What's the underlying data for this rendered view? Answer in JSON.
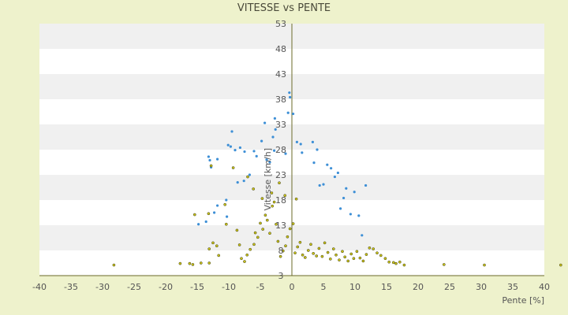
{
  "chart_data": {
    "type": "scatter",
    "title": "VITESSE vs PENTE",
    "xlabel": "Pente [%]",
    "ylabel": "Vitesse [km/h]",
    "xlim": [
      -40,
      40
    ],
    "ylim": [
      3,
      53
    ],
    "x_ticks": [
      "-40",
      "-35",
      "-30",
      "-25",
      "-20",
      "-15",
      "-10",
      "-5",
      "0",
      "5",
      "10",
      "15",
      "20",
      "25",
      "30",
      "35",
      "40"
    ],
    "y_ticks": [
      "3",
      "8",
      "13",
      "18",
      "23",
      "28",
      "33",
      "38",
      "43",
      "48",
      "53"
    ],
    "grid": "horizontal alternating bands",
    "colors": {
      "series_1": "#3d8fd6",
      "series_2": "#c9c21a",
      "series_2_edge": "#3b3b16",
      "axis": "#6b6b2a",
      "band": "#f0f0f0"
    },
    "series": [
      {
        "color": "#3d8fd6",
        "points": [
          [
            -0.4,
            39.3
          ],
          [
            -0.3,
            38.4
          ],
          [
            0.2,
            35.1
          ],
          [
            -0.6,
            35.3
          ],
          [
            -2.7,
            34.2
          ],
          [
            -4.3,
            33.3
          ],
          [
            -9.5,
            31.6
          ],
          [
            -2.6,
            32.0
          ],
          [
            -4.8,
            29.7
          ],
          [
            -3.0,
            30.5
          ],
          [
            1.4,
            29.1
          ],
          [
            0.8,
            29.5
          ],
          [
            -10.1,
            28.9
          ],
          [
            -9.7,
            28.6
          ],
          [
            -6.0,
            27.7
          ],
          [
            -7.5,
            27.6
          ],
          [
            -8.2,
            28.4
          ],
          [
            -2.8,
            27.8
          ],
          [
            1.6,
            27.4
          ],
          [
            3.3,
            29.5
          ],
          [
            4.0,
            28.0
          ],
          [
            -13.2,
            26.6
          ],
          [
            -13.0,
            25.9
          ],
          [
            -11.8,
            26.1
          ],
          [
            -9.0,
            27.9
          ],
          [
            -5.6,
            26.7
          ],
          [
            -4.0,
            26.0
          ],
          [
            -1.0,
            27.2
          ],
          [
            5.6,
            25.0
          ],
          [
            6.2,
            24.3
          ],
          [
            -12.8,
            24.5
          ],
          [
            -3.5,
            25.5
          ],
          [
            3.5,
            25.4
          ],
          [
            7.3,
            23.4
          ],
          [
            -6.7,
            23.0
          ],
          [
            6.8,
            22.6
          ],
          [
            -7.6,
            21.8
          ],
          [
            -8.6,
            21.5
          ],
          [
            4.4,
            20.9
          ],
          [
            5.0,
            21.1
          ],
          [
            8.6,
            20.3
          ],
          [
            11.7,
            20.9
          ],
          [
            9.9,
            19.6
          ],
          [
            8.2,
            18.4
          ],
          [
            -10.4,
            18.0
          ],
          [
            -11.8,
            16.9
          ],
          [
            7.7,
            16.3
          ],
          [
            -12.3,
            15.5
          ],
          [
            -13.6,
            13.7
          ],
          [
            -14.8,
            13.2
          ],
          [
            -10.3,
            14.7
          ],
          [
            9.3,
            15.2
          ],
          [
            10.6,
            14.9
          ],
          [
            11.1,
            11.0
          ]
        ]
      },
      {
        "color": "#c9c21a",
        "points": [
          [
            -28.2,
            5.1
          ],
          [
            -17.7,
            5.4
          ],
          [
            -16.2,
            5.4
          ],
          [
            -15.7,
            5.2
          ],
          [
            -14.4,
            5.5
          ],
          [
            -13.1,
            5.5
          ],
          [
            -11.6,
            7.0
          ],
          [
            -13.1,
            8.3
          ],
          [
            -11.9,
            8.9
          ],
          [
            -12.5,
            9.5
          ],
          [
            -15.4,
            15.1
          ],
          [
            -13.2,
            15.3
          ],
          [
            -12.8,
            24.8
          ],
          [
            -10.6,
            17.1
          ],
          [
            -10.4,
            13.2
          ],
          [
            -8.7,
            12.0
          ],
          [
            -8.3,
            9.1
          ],
          [
            -8.0,
            6.4
          ],
          [
            -7.5,
            5.8
          ],
          [
            -7.1,
            7.1
          ],
          [
            -6.6,
            8.2
          ],
          [
            -6.0,
            9.2
          ],
          [
            -5.8,
            11.5
          ],
          [
            -5.4,
            10.6
          ],
          [
            -5.0,
            13.4
          ],
          [
            -4.6,
            12.2
          ],
          [
            -4.2,
            15.0
          ],
          [
            -3.9,
            14.0
          ],
          [
            -3.5,
            11.4
          ],
          [
            -3.1,
            16.8
          ],
          [
            -2.8,
            17.6
          ],
          [
            -2.5,
            13.2
          ],
          [
            -2.2,
            9.8
          ],
          [
            -1.8,
            6.8
          ],
          [
            -1.4,
            7.9
          ],
          [
            -1.0,
            8.9
          ],
          [
            -0.7,
            10.7
          ],
          [
            -0.3,
            12.3
          ],
          [
            0.2,
            13.3
          ],
          [
            0.5,
            7.5
          ],
          [
            0.9,
            8.7
          ],
          [
            1.3,
            9.6
          ],
          [
            1.7,
            7.1
          ],
          [
            2.1,
            6.6
          ],
          [
            2.6,
            8.0
          ],
          [
            3.0,
            9.2
          ],
          [
            3.4,
            7.4
          ],
          [
            3.9,
            6.9
          ],
          [
            4.3,
            8.4
          ],
          [
            4.8,
            6.8
          ],
          [
            5.2,
            9.5
          ],
          [
            5.7,
            7.6
          ],
          [
            6.1,
            6.3
          ],
          [
            6.6,
            8.3
          ],
          [
            7.0,
            7.1
          ],
          [
            7.5,
            6.1
          ],
          [
            8.0,
            7.8
          ],
          [
            8.4,
            6.7
          ],
          [
            8.9,
            5.9
          ],
          [
            9.4,
            7.3
          ],
          [
            9.8,
            6.4
          ],
          [
            10.3,
            7.8
          ],
          [
            10.8,
            6.5
          ],
          [
            11.3,
            5.9
          ],
          [
            11.8,
            7.2
          ],
          [
            12.3,
            8.5
          ],
          [
            12.9,
            8.3
          ],
          [
            13.5,
            7.5
          ],
          [
            14.1,
            7.0
          ],
          [
            14.8,
            6.4
          ],
          [
            15.4,
            5.7
          ],
          [
            16.1,
            5.6
          ],
          [
            16.5,
            5.4
          ],
          [
            17.1,
            5.7
          ],
          [
            17.8,
            5.1
          ],
          [
            24.1,
            5.2
          ],
          [
            30.5,
            5.1
          ],
          [
            42.6,
            5.1
          ],
          [
            -4.7,
            18.3
          ],
          [
            -6.1,
            20.2
          ],
          [
            -3.2,
            19.4
          ],
          [
            -1.1,
            18.9
          ],
          [
            0.7,
            18.2
          ],
          [
            -9.3,
            24.4
          ],
          [
            -7.0,
            22.6
          ],
          [
            -2.0,
            21.4
          ]
        ]
      }
    ]
  }
}
